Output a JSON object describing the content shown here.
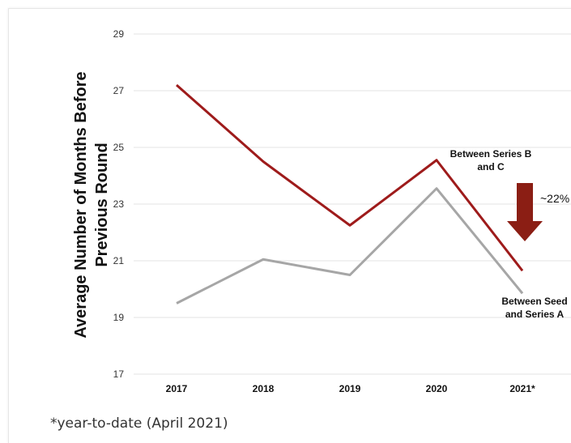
{
  "chart_data": {
    "type": "line",
    "ylabel": "Average Number of Months Before Previous Round",
    "xlabel": "",
    "categories": [
      "2017",
      "2018",
      "2019",
      "2020",
      "2021*"
    ],
    "ylim": [
      17,
      29
    ],
    "yticks": [
      17,
      19,
      21,
      23,
      25,
      27,
      29
    ],
    "grid": true,
    "series": [
      {
        "name": "Between Series B and C",
        "color": "#9e1b1b",
        "values": [
          27.2,
          24.5,
          22.25,
          24.55,
          20.65
        ]
      },
      {
        "name": "Between Seed and Series A",
        "color": "#a6a6a6",
        "values": [
          19.5,
          21.05,
          20.5,
          23.55,
          19.85
        ]
      }
    ],
    "annotation": {
      "text": "~22%",
      "arrow_color": "#8b1e14"
    }
  },
  "footnote": "*year-to-date (April 2021)"
}
